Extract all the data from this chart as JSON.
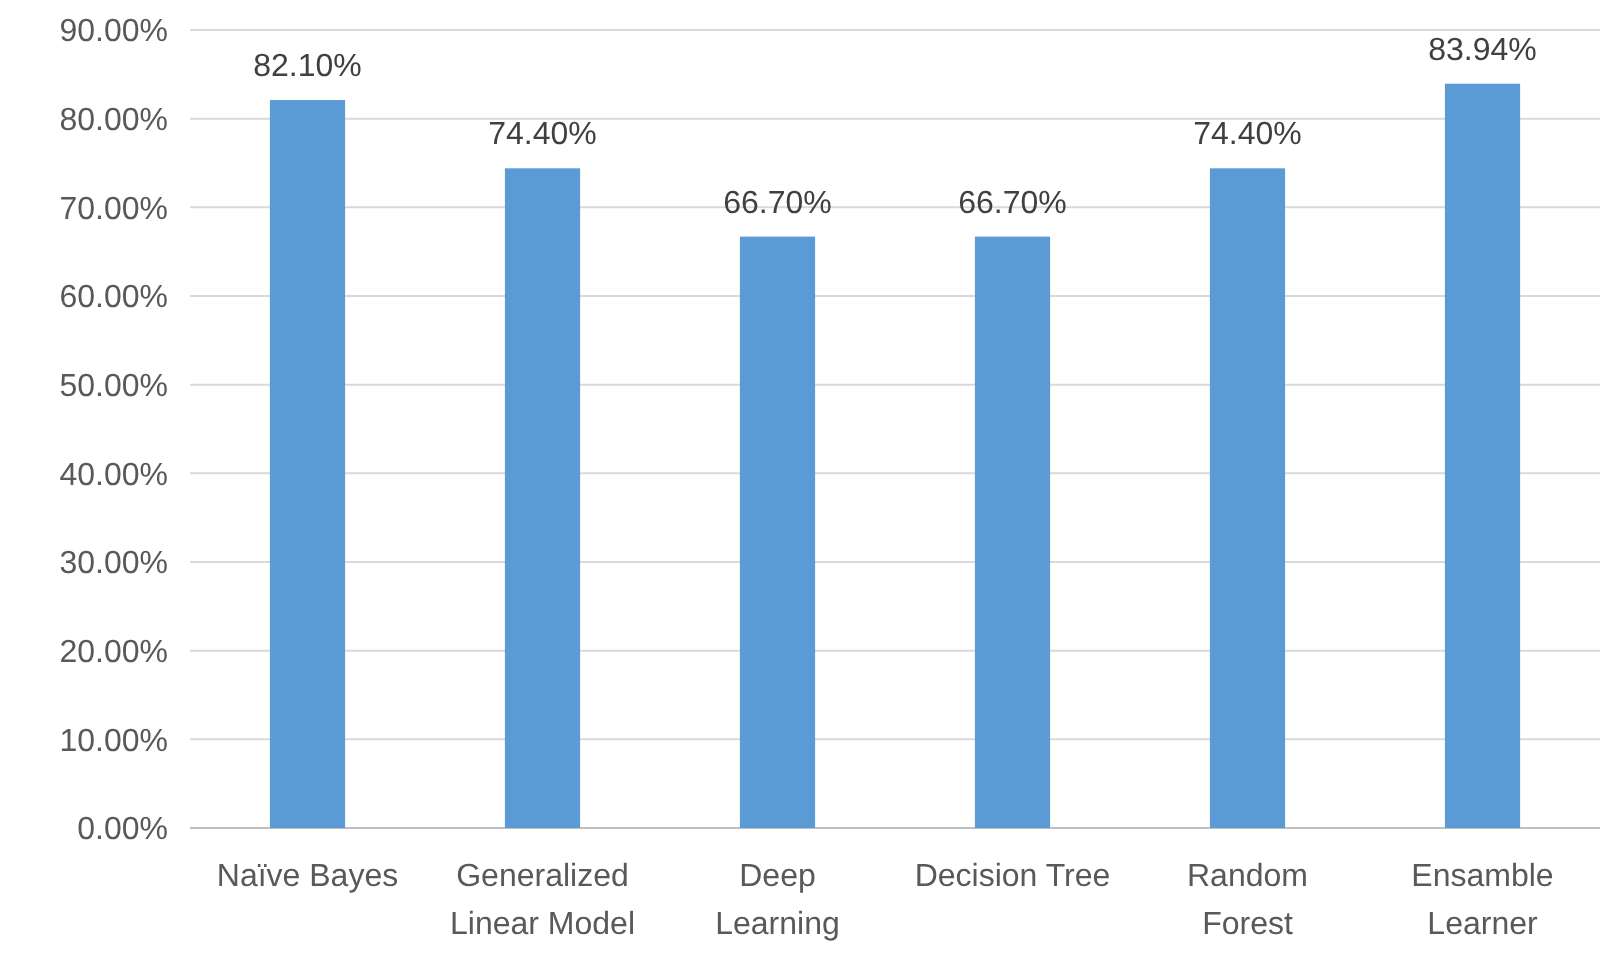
{
  "chart_data": {
    "type": "bar",
    "categories": [
      "Naïve Bayes",
      "Generalized Linear Model",
      "Deep Learning",
      "Decision Tree",
      "Random Forest",
      "Ensamble Learner"
    ],
    "values": [
      82.1,
      74.4,
      66.7,
      66.7,
      74.4,
      83.94
    ],
    "value_labels": [
      "82.10%",
      "74.40%",
      "66.70%",
      "66.70%",
      "74.40%",
      "83.94%"
    ],
    "color": "#5b9bd5",
    "ylim": [
      0,
      90
    ],
    "yticks": [
      {
        "value": 0,
        "label": "0.00%"
      },
      {
        "value": 10,
        "label": "10.00%"
      },
      {
        "value": 20,
        "label": "20.00%"
      },
      {
        "value": 30,
        "label": "30.00%"
      },
      {
        "value": 40,
        "label": "40.00%"
      },
      {
        "value": 50,
        "label": "50.00%"
      },
      {
        "value": 60,
        "label": "60.00%"
      },
      {
        "value": 70,
        "label": "70.00%"
      },
      {
        "value": 80,
        "label": "80.00%"
      },
      {
        "value": 90,
        "label": "90.00%"
      }
    ],
    "grid": "y"
  }
}
